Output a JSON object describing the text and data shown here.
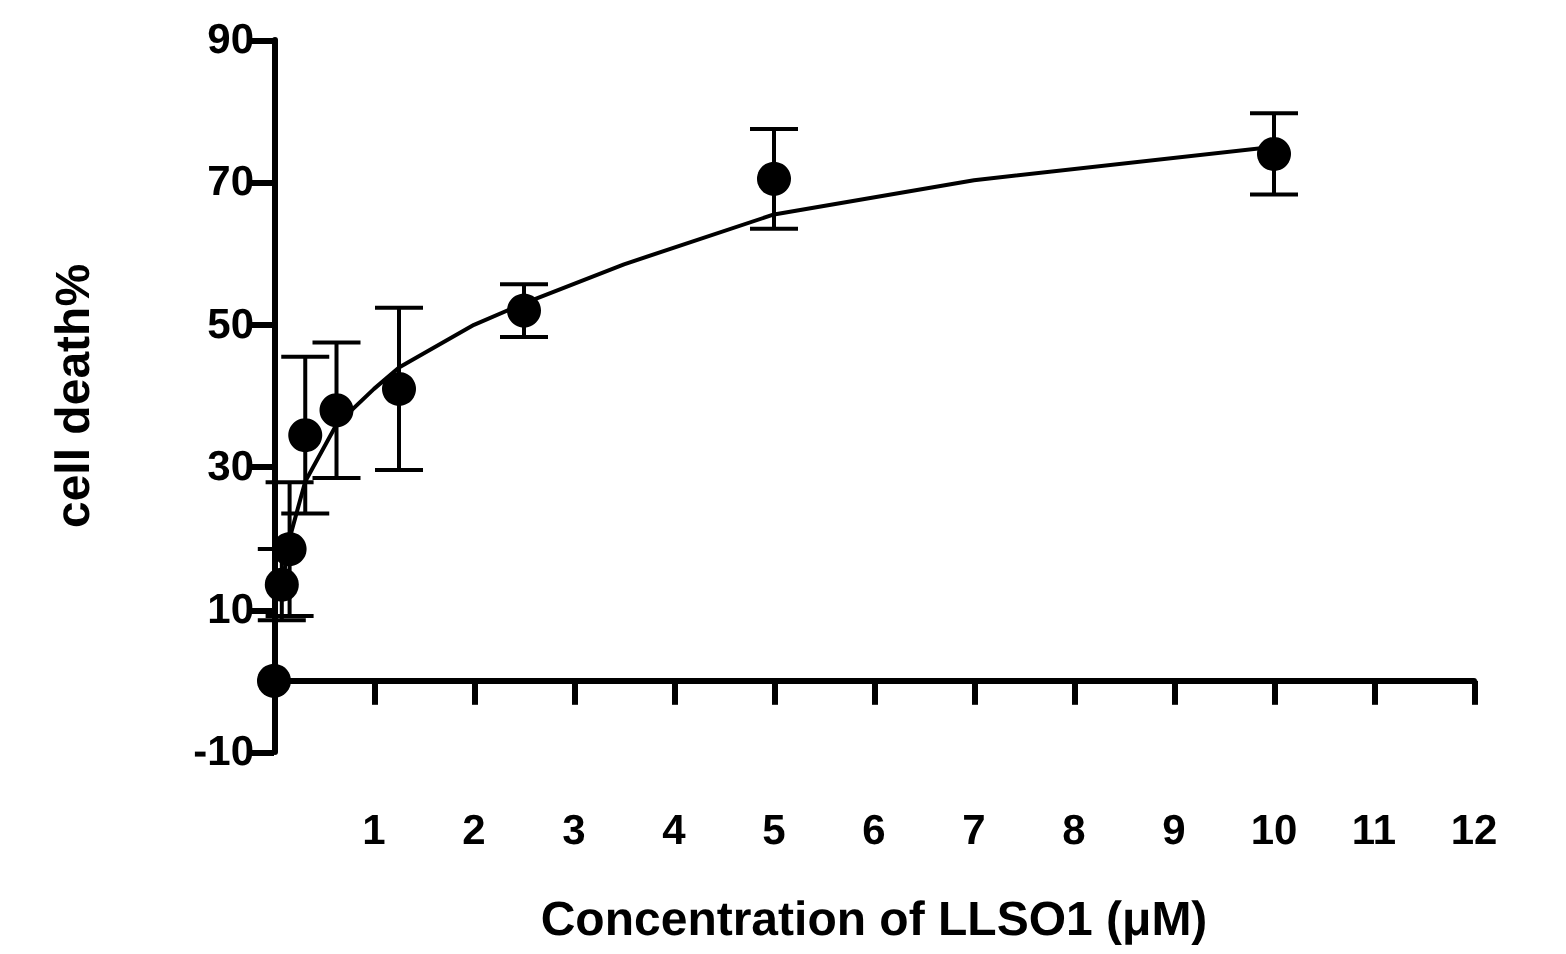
{
  "chart_data": {
    "type": "scatter",
    "xlabel": "Concentration of LLSO1 (μM)",
    "ylabel": "cell death%",
    "xlim": [
      0,
      12
    ],
    "xticks": [
      1,
      2,
      3,
      4,
      5,
      6,
      7,
      8,
      9,
      10,
      11,
      12
    ],
    "ylim": [
      -10,
      90
    ],
    "yticks": [
      -10,
      10,
      30,
      50,
      70,
      90
    ],
    "grid": false,
    "marker": "circle",
    "series": [
      {
        "color": "#000000",
        "x": [
          0,
          0.078,
          0.156,
          0.3125,
          0.625,
          1.25,
          2.5,
          5,
          10
        ],
        "values": [
          0,
          13.5,
          18.5,
          34.5,
          38,
          41,
          52,
          70.5,
          74
        ],
        "errors": [
          null,
          5,
          9.4,
          11,
          9.5,
          11.4,
          3.7,
          7,
          5.7
        ]
      },
      {
        "type": "line",
        "color": "#000000",
        "marker": "none",
        "line_style": "solid",
        "x": [
          0.078,
          0.156,
          0.3125,
          0.625,
          1,
          1.25,
          2,
          2.5,
          3.5,
          5,
          7,
          10
        ],
        "values": [
          13,
          20,
          28,
          36,
          41,
          44,
          50,
          53,
          58.5,
          65.5,
          70.3,
          75
        ]
      }
    ]
  }
}
